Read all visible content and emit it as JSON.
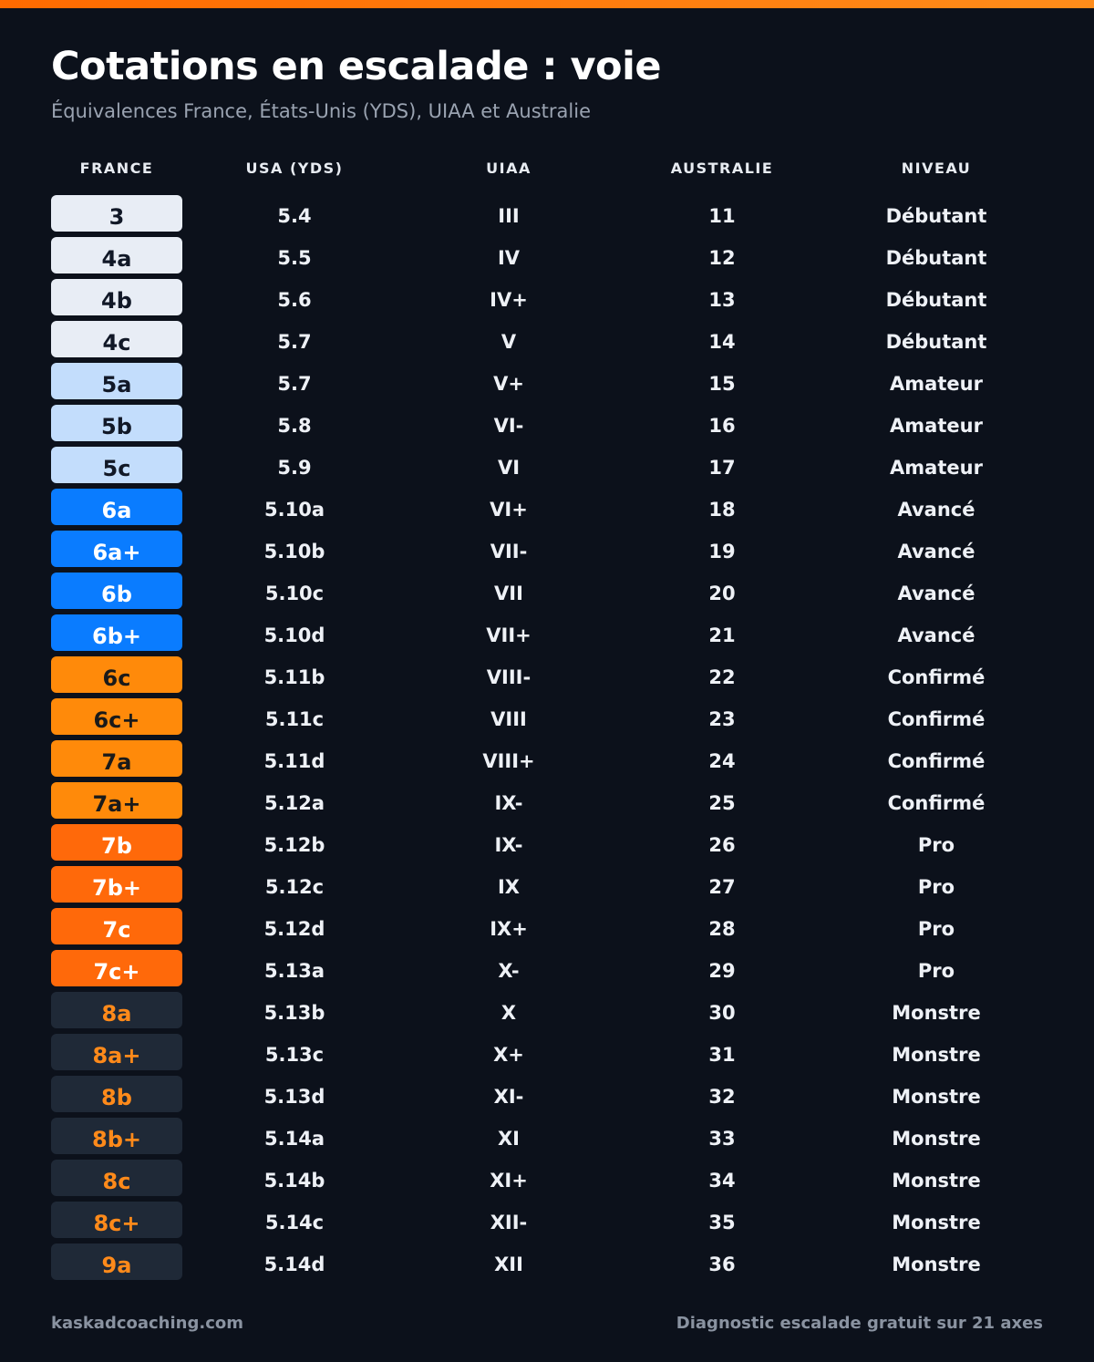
{
  "header": {
    "title": "Cotations en escalade : voie",
    "subtitle": "Équivalences France, États-Unis (YDS), UIAA et Australie"
  },
  "table": {
    "columns": [
      "FRANCE",
      "USA (YDS)",
      "UIAA",
      "AUSTRALIE",
      "NIVEAU"
    ],
    "rows": [
      [
        "3",
        "5.4",
        "III",
        "11",
        "Débutant"
      ],
      [
        "4a",
        "5.5",
        "IV",
        "12",
        "Débutant"
      ],
      [
        "4b",
        "5.6",
        "IV+",
        "13",
        "Débutant"
      ],
      [
        "4c",
        "5.7",
        "V",
        "14",
        "Débutant"
      ],
      [
        "5a",
        "5.7",
        "V+",
        "15",
        "Amateur"
      ],
      [
        "5b",
        "5.8",
        "VI-",
        "16",
        "Amateur"
      ],
      [
        "5c",
        "5.9",
        "VI",
        "17",
        "Amateur"
      ],
      [
        "6a",
        "5.10a",
        "VI+",
        "18",
        "Avancé"
      ],
      [
        "6a+",
        "5.10b",
        "VII-",
        "19",
        "Avancé"
      ],
      [
        "6b",
        "5.10c",
        "VII",
        "20",
        "Avancé"
      ],
      [
        "6b+",
        "5.10d",
        "VII+",
        "21",
        "Avancé"
      ],
      [
        "6c",
        "5.11b",
        "VIII-",
        "22",
        "Confirmé"
      ],
      [
        "6c+",
        "5.11c",
        "VIII",
        "23",
        "Confirmé"
      ],
      [
        "7a",
        "5.11d",
        "VIII+",
        "24",
        "Confirmé"
      ],
      [
        "7a+",
        "5.12a",
        "IX-",
        "25",
        "Confirmé"
      ],
      [
        "7b",
        "5.12b",
        "IX-",
        "26",
        "Pro"
      ],
      [
        "7b+",
        "5.12c",
        "IX",
        "27",
        "Pro"
      ],
      [
        "7c",
        "5.12d",
        "IX+",
        "28",
        "Pro"
      ],
      [
        "7c+",
        "5.13a",
        "X-",
        "29",
        "Pro"
      ],
      [
        "8a",
        "5.13b",
        "X",
        "30",
        "Monstre"
      ],
      [
        "8a+",
        "5.13c",
        "X+",
        "31",
        "Monstre"
      ],
      [
        "8b",
        "5.13d",
        "XI-",
        "32",
        "Monstre"
      ],
      [
        "8b+",
        "5.14a",
        "XI",
        "33",
        "Monstre"
      ],
      [
        "8c",
        "5.14b",
        "XI+",
        "34",
        "Monstre"
      ],
      [
        "8c+",
        "5.14c",
        "XII-",
        "35",
        "Monstre"
      ],
      [
        "9a",
        "5.14d",
        "XII",
        "36",
        "Monstre"
      ]
    ]
  },
  "footer": {
    "left": "kaskadcoaching.com",
    "right": "Diagnostic escalade gratuit sur 21 axes"
  }
}
